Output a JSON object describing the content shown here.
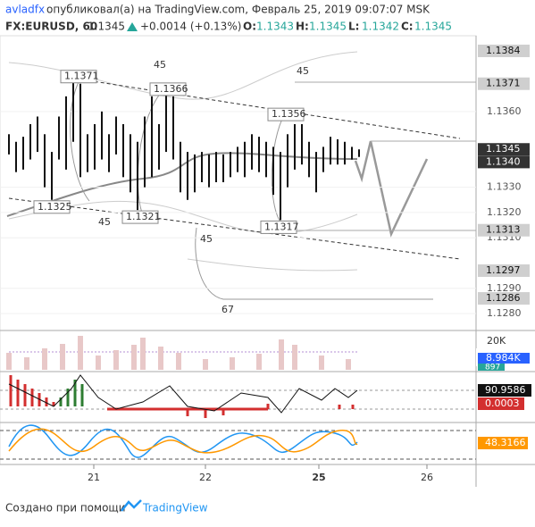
{
  "header": {
    "author": "avladfx",
    "published": "опубликовал(а) на TradingView.com, Февраль 25, 2019 09:07:07 MSK",
    "symbol": "FX:EURUSD, 60",
    "price": "1.1345",
    "change": "+0.0014 (+0.13%)",
    "ohlc": [
      {
        "label": "O:",
        "value": "1.1343"
      },
      {
        "label": "H:",
        "value": "1.1345"
      },
      {
        "label": "L:",
        "value": "1.1342"
      },
      {
        "label": "C:",
        "value": "1.1345"
      }
    ]
  },
  "price_axis": {
    "ylim": [
      1.1274,
      1.139
    ],
    "ticks": [
      {
        "value": 1.128,
        "label": "1.1280"
      },
      {
        "value": 1.129,
        "label": "1.1290"
      },
      {
        "value": 1.131,
        "label": "1.1310"
      },
      {
        "value": 1.132,
        "label": "1.1320"
      },
      {
        "value": 1.133,
        "label": "1.1330"
      },
      {
        "value": 1.136,
        "label": "1.1360"
      }
    ],
    "tags": [
      {
        "value": 1.1384,
        "style": "light"
      },
      {
        "value": 1.1371,
        "style": "light"
      },
      {
        "value": 1.1345,
        "style": "dark"
      },
      {
        "value": 1.134,
        "label": "1.1340",
        "style": "dark"
      },
      {
        "value": 1.1313,
        "style": "light"
      },
      {
        "value": 1.1297,
        "style": "light"
      },
      {
        "value": 1.1286,
        "style": "light"
      }
    ]
  },
  "bars": [
    [
      1.1351,
      1.1343
    ],
    [
      1.1348,
      1.1336
    ],
    [
      1.135,
      1.1337
    ],
    [
      1.1355,
      1.1341
    ],
    [
      1.1358,
      1.1344
    ],
    [
      1.1351,
      1.133
    ],
    [
      1.1344,
      1.1325
    ],
    [
      1.1358,
      1.1341
    ],
    [
      1.1366,
      1.1337
    ],
    [
      1.1373,
      1.1348
    ],
    [
      1.1371,
      1.1334
    ],
    [
      1.1351,
      1.1336
    ],
    [
      1.1355,
      1.1337
    ],
    [
      1.136,
      1.1341
    ],
    [
      1.1351,
      1.1336
    ],
    [
      1.1358,
      1.1343
    ],
    [
      1.1355,
      1.1334
    ],
    [
      1.1351,
      1.1328
    ],
    [
      1.1348,
      1.1321
    ],
    [
      1.1358,
      1.133
    ],
    [
      1.1366,
      1.1334
    ],
    [
      1.1355,
      1.1337
    ],
    [
      1.1369,
      1.1344
    ],
    [
      1.1366,
      1.1341
    ],
    [
      1.1348,
      1.1328
    ],
    [
      1.1344,
      1.1325
    ],
    [
      1.1343,
      1.1328
    ],
    [
      1.1344,
      1.1332
    ],
    [
      1.1343,
      1.133
    ],
    [
      1.1344,
      1.1332
    ],
    [
      1.1343,
      1.1332
    ],
    [
      1.1344,
      1.1334
    ],
    [
      1.1346,
      1.1336
    ],
    [
      1.1348,
      1.1334
    ],
    [
      1.1351,
      1.1337
    ],
    [
      1.135,
      1.1336
    ],
    [
      1.1348,
      1.1334
    ],
    [
      1.1346,
      1.1327
    ],
    [
      1.1344,
      1.1317
    ],
    [
      1.1351,
      1.133
    ],
    [
      1.1355,
      1.1337
    ],
    [
      1.1355,
      1.1339
    ],
    [
      1.1348,
      1.1334
    ],
    [
      1.1344,
      1.1328
    ],
    [
      1.1346,
      1.1336
    ],
    [
      1.135,
      1.1339
    ],
    [
      1.1349,
      1.1339
    ],
    [
      1.1348,
      1.1339
    ],
    [
      1.1346,
      1.1341
    ],
    [
      1.1345,
      1.1342
    ]
  ],
  "pivots": [
    {
      "value": 1.1371,
      "label": "1.1371"
    },
    {
      "value": 1.1366,
      "label": "1.1366"
    },
    {
      "value": 1.1356,
      "label": "1.1356"
    },
    {
      "value": 1.1325,
      "label": "1.1325"
    },
    {
      "value": 1.1321,
      "label": "1.1321"
    },
    {
      "value": 1.1317,
      "label": "1.1317"
    }
  ],
  "counts": [
    45,
    45,
    45,
    45,
    67
  ],
  "time_axis": [
    "21",
    "22",
    "25",
    "26"
  ],
  "volume": {
    "axis_label": "20K",
    "volume_tag": "8.984K",
    "ma_tag": "897"
  },
  "macd": {
    "tag_a": "90.9586",
    "tag_b": "0.0003"
  },
  "stoch": {
    "tag": "48.3166"
  },
  "footer": {
    "text": "Создано при помощи",
    "brand": "TradingView"
  }
}
